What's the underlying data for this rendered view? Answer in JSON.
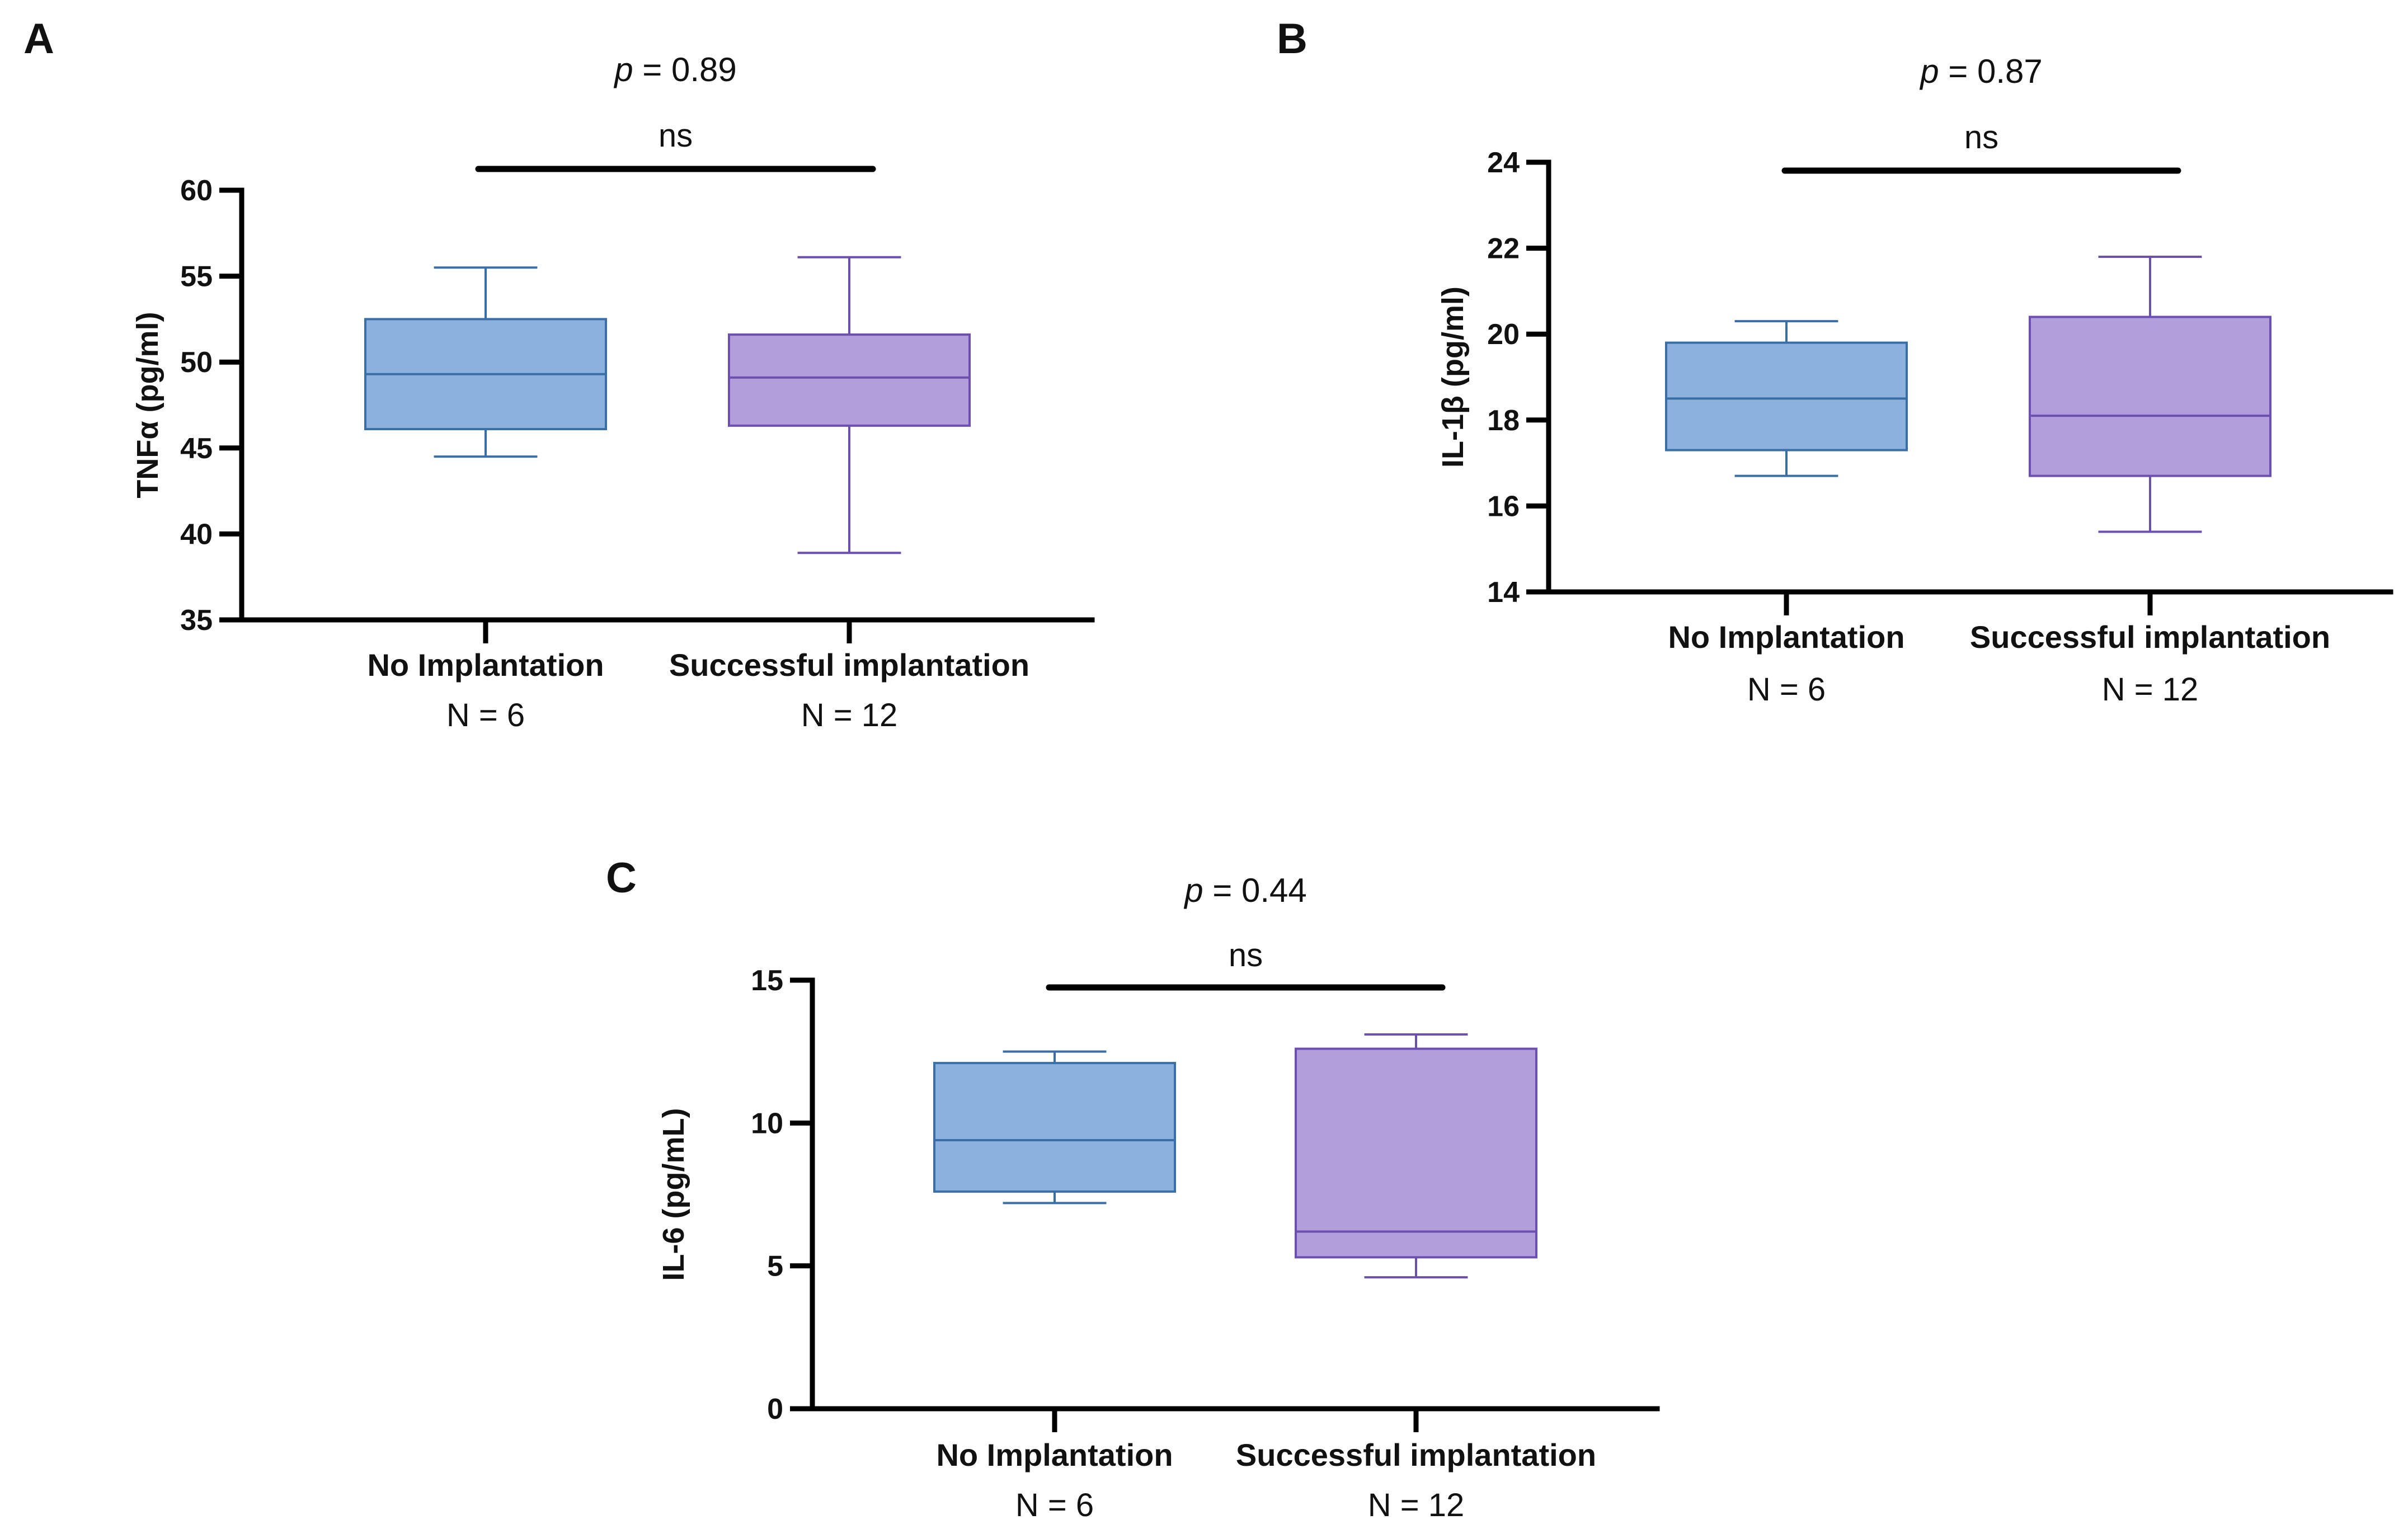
{
  "chart_data": [
    {
      "panel": "A",
      "type": "box",
      "ylabel": "TNFα  (pg/ml)",
      "ylim": [
        35,
        60
      ],
      "yticks": [
        35,
        40,
        45,
        50,
        55,
        60
      ],
      "p_value": "0.89",
      "significance": "ns",
      "categories": [
        "No Implantation",
        "Successful implantation"
      ],
      "n_labels": [
        "N = 6",
        "N = 12"
      ],
      "series": [
        {
          "name": "No Implantation",
          "min": 44.5,
          "q1": 46.1,
          "median": 49.3,
          "q3": 52.5,
          "max": 55.5,
          "color": "#8cb1dc",
          "edge": "#3a6ea6"
        },
        {
          "name": "Successful implantation",
          "min": 38.9,
          "q1": 46.3,
          "median": 49.1,
          "q3": 51.6,
          "max": 56.1,
          "color": "#b19edb",
          "edge": "#6d4fb0"
        }
      ]
    },
    {
      "panel": "B",
      "type": "box",
      "ylabel": "IL-1β (pg/ml)",
      "ylim": [
        14,
        24
      ],
      "yticks": [
        14,
        16,
        18,
        20,
        22,
        24
      ],
      "p_value": "0.87",
      "significance": "ns",
      "categories": [
        "No Implantation",
        "Successful implantation"
      ],
      "n_labels": [
        "N = 6",
        "N = 12"
      ],
      "series": [
        {
          "name": "No Implantation",
          "min": 16.7,
          "q1": 17.3,
          "median": 18.5,
          "q3": 19.8,
          "max": 20.3,
          "color": "#8cb1dc",
          "edge": "#3a6ea6"
        },
        {
          "name": "Successful implantation",
          "min": 15.4,
          "q1": 16.7,
          "median": 18.1,
          "q3": 20.4,
          "max": 21.8,
          "color": "#b19edb",
          "edge": "#6d4fb0"
        }
      ]
    },
    {
      "panel": "C",
      "type": "box",
      "ylabel": "IL-6  (pg/mL)",
      "ylim": [
        0,
        15
      ],
      "yticks": [
        0,
        5,
        10,
        15
      ],
      "p_value": "0.44",
      "significance": "ns",
      "categories": [
        "No Implantation",
        "Successful implantation"
      ],
      "n_labels": [
        "N = 6",
        "N = 12"
      ],
      "series": [
        {
          "name": "No Implantation",
          "min": 7.2,
          "q1": 7.6,
          "median": 9.4,
          "q3": 12.1,
          "max": 12.5,
          "color": "#8cb1dc",
          "edge": "#3a6ea6"
        },
        {
          "name": "Successful implantation",
          "min": 4.6,
          "q1": 5.3,
          "median": 6.2,
          "q3": 12.6,
          "max": 13.1,
          "color": "#b19edb",
          "edge": "#6d4fb0"
        }
      ]
    }
  ]
}
